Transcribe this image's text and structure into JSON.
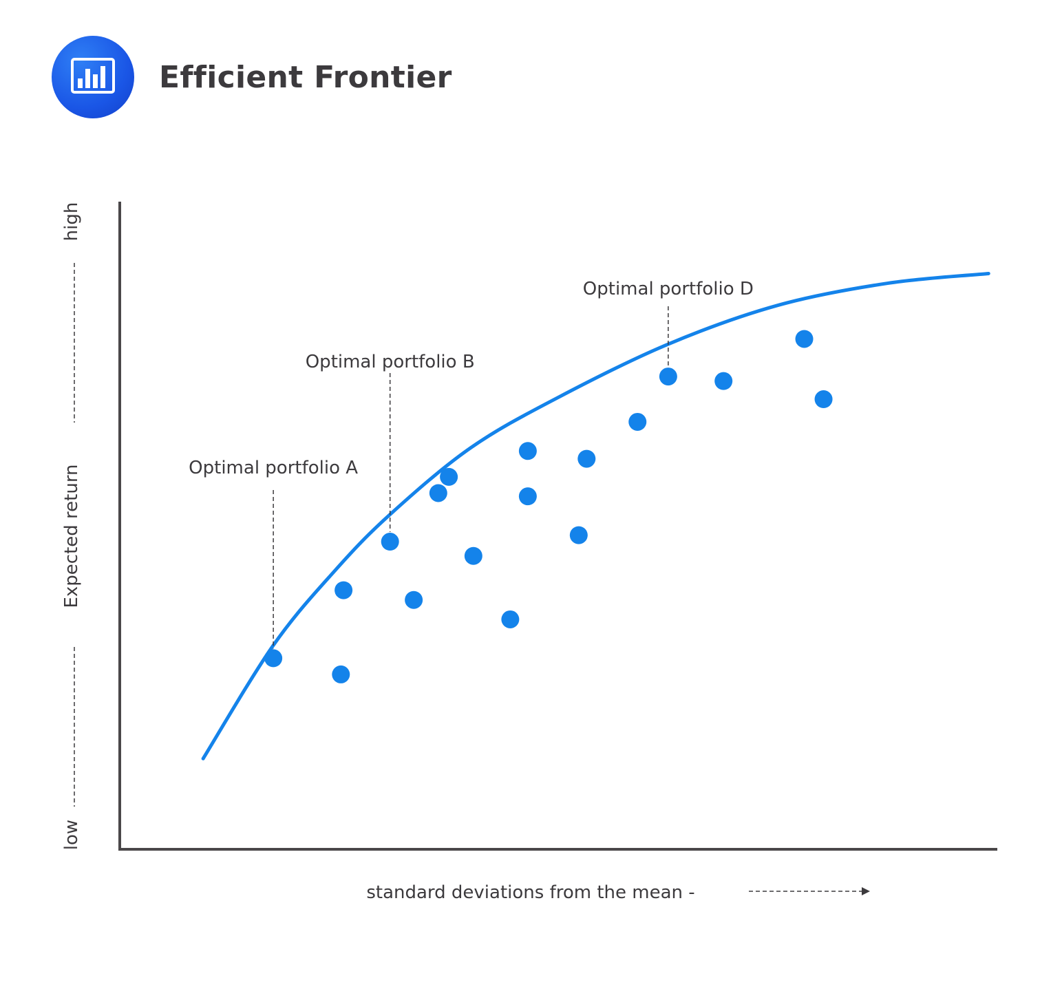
{
  "header": {
    "title": "Efficient Frontier",
    "logo_icon": "bar-chart-icon"
  },
  "colors": {
    "accent": "#1483ea",
    "axis": "#4a4749",
    "text": "#3c3a3d"
  },
  "chart_data": {
    "type": "scatter",
    "title": "",
    "xlabel": "standard deviations from the mean -",
    "ylabel": "Expected return",
    "y_low_label": "low",
    "y_high_label": "high",
    "xlim": [
      0,
      100
    ],
    "ylim": [
      0,
      100
    ],
    "grid": false,
    "series": [
      {
        "points": [
          [
            17.5,
            29.5
          ],
          [
            25.2,
            27
          ],
          [
            25.5,
            40
          ],
          [
            30.8,
            47.5
          ],
          [
            33.5,
            38.5
          ],
          [
            36.3,
            55
          ],
          [
            37.5,
            57.5
          ],
          [
            40.3,
            45.3
          ],
          [
            44.5,
            35.5
          ],
          [
            46.5,
            54.5
          ],
          [
            46.5,
            61.5
          ],
          [
            52.3,
            48.5
          ],
          [
            53.2,
            60.3
          ],
          [
            59,
            66
          ],
          [
            62.5,
            73
          ],
          [
            68.8,
            72.3
          ],
          [
            78,
            78.8
          ],
          [
            80.2,
            69.5
          ]
        ]
      }
    ],
    "frontier": [
      [
        9.5,
        14
      ],
      [
        17.5,
        31.5
      ],
      [
        24.5,
        43
      ],
      [
        30.8,
        51.7
      ],
      [
        40,
        62
      ],
      [
        50,
        69.8
      ],
      [
        62.5,
        78
      ],
      [
        75,
        84
      ],
      [
        87.5,
        87.4
      ],
      [
        99,
        88.9
      ]
    ],
    "annotations": [
      {
        "text": "Optimal portfolio A",
        "x": 17.5,
        "y": 29.5
      },
      {
        "text": "Optimal portfolio B",
        "x": 30.8,
        "y": 47.5
      },
      {
        "text": "Optimal portfolio D",
        "x": 62.5,
        "y": 73
      }
    ]
  }
}
